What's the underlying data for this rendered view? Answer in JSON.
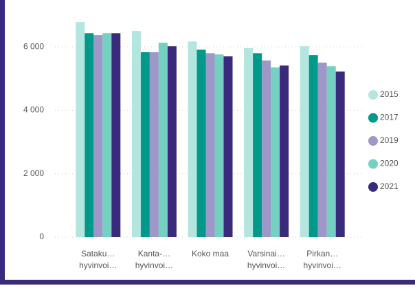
{
  "chart_data": {
    "type": "bar",
    "categories": [
      [
        "Sataku…",
        "hyvinvoi…"
      ],
      [
        "Kanta-…",
        "hyvinvoi…"
      ],
      [
        "Koko maa"
      ],
      [
        "Varsinai…",
        "hyvinvoi…"
      ],
      [
        "Pirkan…",
        "hyvinvoi…"
      ]
    ],
    "series": [
      {
        "name": "2015",
        "color": "#b3e6de",
        "values": [
          6780,
          6500,
          6170,
          5960,
          6020
        ]
      },
      {
        "name": "2017",
        "color": "#01998a",
        "values": [
          6430,
          5830,
          5910,
          5800,
          5740
        ]
      },
      {
        "name": "2019",
        "color": "#9d98c8",
        "values": [
          6370,
          5830,
          5800,
          5570,
          5500
        ]
      },
      {
        "name": "2020",
        "color": "#74d0c1",
        "values": [
          6430,
          6130,
          5760,
          5350,
          5390
        ]
      },
      {
        "name": "2021",
        "color": "#3a2a7b",
        "values": [
          6430,
          6020,
          5700,
          5410,
          5220
        ]
      }
    ],
    "ylim": [
      0,
      7000
    ],
    "yticks": [
      0,
      {
        "value": 2000,
        "label": "2 000"
      },
      {
        "value": 4000,
        "label": "4 000"
      },
      {
        "value": 6000,
        "label": "6 000"
      }
    ],
    "grid": true,
    "legend": "right"
  }
}
